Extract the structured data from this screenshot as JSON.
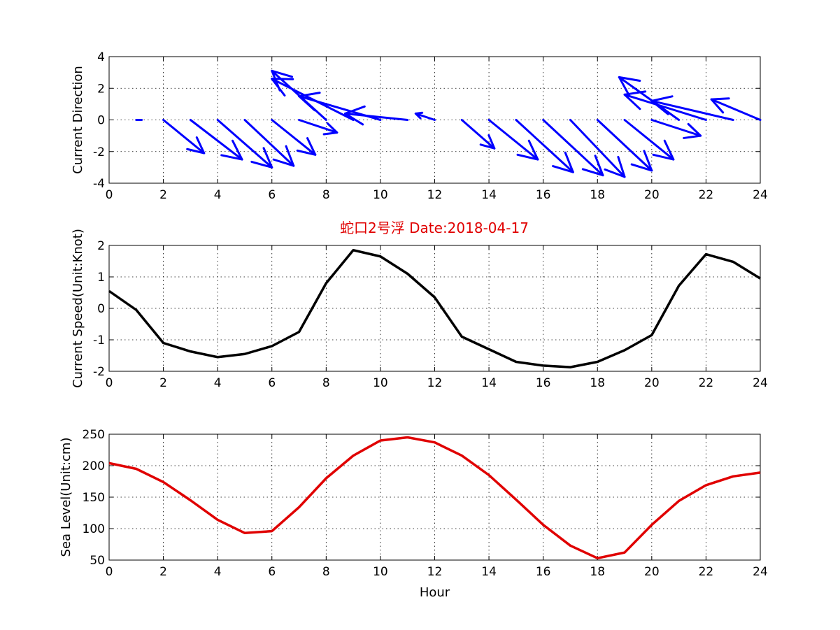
{
  "title": "蛇口2号浮   Date:2018-04-17",
  "title_color": "#e00000",
  "chart_data": [
    {
      "type": "quiver",
      "ylabel": "Current Direction",
      "xlabel": "",
      "xlim": [
        0,
        24
      ],
      "ylim": [
        -4,
        4
      ],
      "xticks": [
        0,
        2,
        4,
        6,
        8,
        10,
        12,
        14,
        16,
        18,
        20,
        22,
        24
      ],
      "yticks": [
        -4,
        -2,
        0,
        2,
        4
      ],
      "grid": true,
      "color": "#0000ff",
      "arrows": [
        {
          "x": 1,
          "u": 0.2,
          "v": 0.0
        },
        {
          "x": 2,
          "u": 1.5,
          "v": -2.1
        },
        {
          "x": 3,
          "u": 1.9,
          "v": -2.5
        },
        {
          "x": 4,
          "u": 2.0,
          "v": -3.0
        },
        {
          "x": 5,
          "u": 1.8,
          "v": -2.9
        },
        {
          "x": 6,
          "u": 1.6,
          "v": -2.2
        },
        {
          "x": 7,
          "u": 1.4,
          "v": -0.8
        },
        {
          "x": 8,
          "u": -2.0,
          "v": 3.1
        },
        {
          "x": 9,
          "u": -3.0,
          "v": 2.6
        },
        {
          "x": 10,
          "u": -3.0,
          "v": 1.5
        },
        {
          "x": 11,
          "u": -2.3,
          "v": 0.4
        },
        {
          "x": 12,
          "u": -0.7,
          "v": 0.4
        },
        {
          "x": 13,
          "u": 1.2,
          "v": -1.8
        },
        {
          "x": 14,
          "u": 1.8,
          "v": -2.5
        },
        {
          "x": 15,
          "u": 2.1,
          "v": -3.3
        },
        {
          "x": 16,
          "u": 2.2,
          "v": -3.5
        },
        {
          "x": 17,
          "u": 2.0,
          "v": -3.6
        },
        {
          "x": 18,
          "u": 2.0,
          "v": -3.2
        },
        {
          "x": 19,
          "u": 1.8,
          "v": -2.5
        },
        {
          "x": 20,
          "u": 1.8,
          "v": -1.0
        },
        {
          "x": 21,
          "u": -2.2,
          "v": 2.7
        },
        {
          "x": 22,
          "u": -3.0,
          "v": 1.6
        },
        {
          "x": 23,
          "u": -3.0,
          "v": 1.2
        },
        {
          "x": 24,
          "u": -1.8,
          "v": 1.3
        }
      ]
    },
    {
      "type": "line",
      "ylabel": "Current Speed(Unit:Knot)",
      "xlabel": "",
      "xlim": [
        0,
        24
      ],
      "ylim": [
        -2,
        2
      ],
      "xticks": [
        0,
        2,
        4,
        6,
        8,
        10,
        12,
        14,
        16,
        18,
        20,
        22,
        24
      ],
      "yticks": [
        -2,
        -1,
        0,
        1,
        2
      ],
      "grid": true,
      "color": "#000000",
      "x": [
        0,
        1,
        2,
        3,
        4,
        5,
        6,
        7,
        8,
        9,
        10,
        11,
        12,
        13,
        14,
        15,
        16,
        17,
        18,
        19,
        20,
        21,
        22,
        23,
        24
      ],
      "values": [
        0.55,
        -0.05,
        -1.1,
        -1.37,
        -1.55,
        -1.45,
        -1.2,
        -0.75,
        0.8,
        1.85,
        1.65,
        1.1,
        0.35,
        -0.9,
        -1.3,
        -1.7,
        -1.82,
        -1.87,
        -1.7,
        -1.33,
        -0.85,
        0.72,
        1.72,
        1.48,
        0.95
      ]
    },
    {
      "type": "line",
      "ylabel": "Sea Level(Unit:cm)",
      "xlabel": "Hour",
      "xlim": [
        0,
        24
      ],
      "ylim": [
        50,
        250
      ],
      "xticks": [
        0,
        2,
        4,
        6,
        8,
        10,
        12,
        14,
        16,
        18,
        20,
        22,
        24
      ],
      "yticks": [
        50,
        100,
        150,
        200,
        250
      ],
      "grid": true,
      "color": "#e00000",
      "x": [
        0,
        1,
        2,
        3,
        4,
        5,
        6,
        7,
        8,
        9,
        10,
        11,
        12,
        13,
        14,
        15,
        16,
        17,
        18,
        19,
        20,
        21,
        22,
        23,
        24
      ],
      "values": [
        204,
        195,
        174,
        145,
        114,
        93,
        96,
        134,
        180,
        216,
        240,
        245,
        237,
        216,
        185,
        146,
        106,
        73,
        53,
        62,
        106,
        144,
        169,
        183,
        189
      ]
    }
  ]
}
